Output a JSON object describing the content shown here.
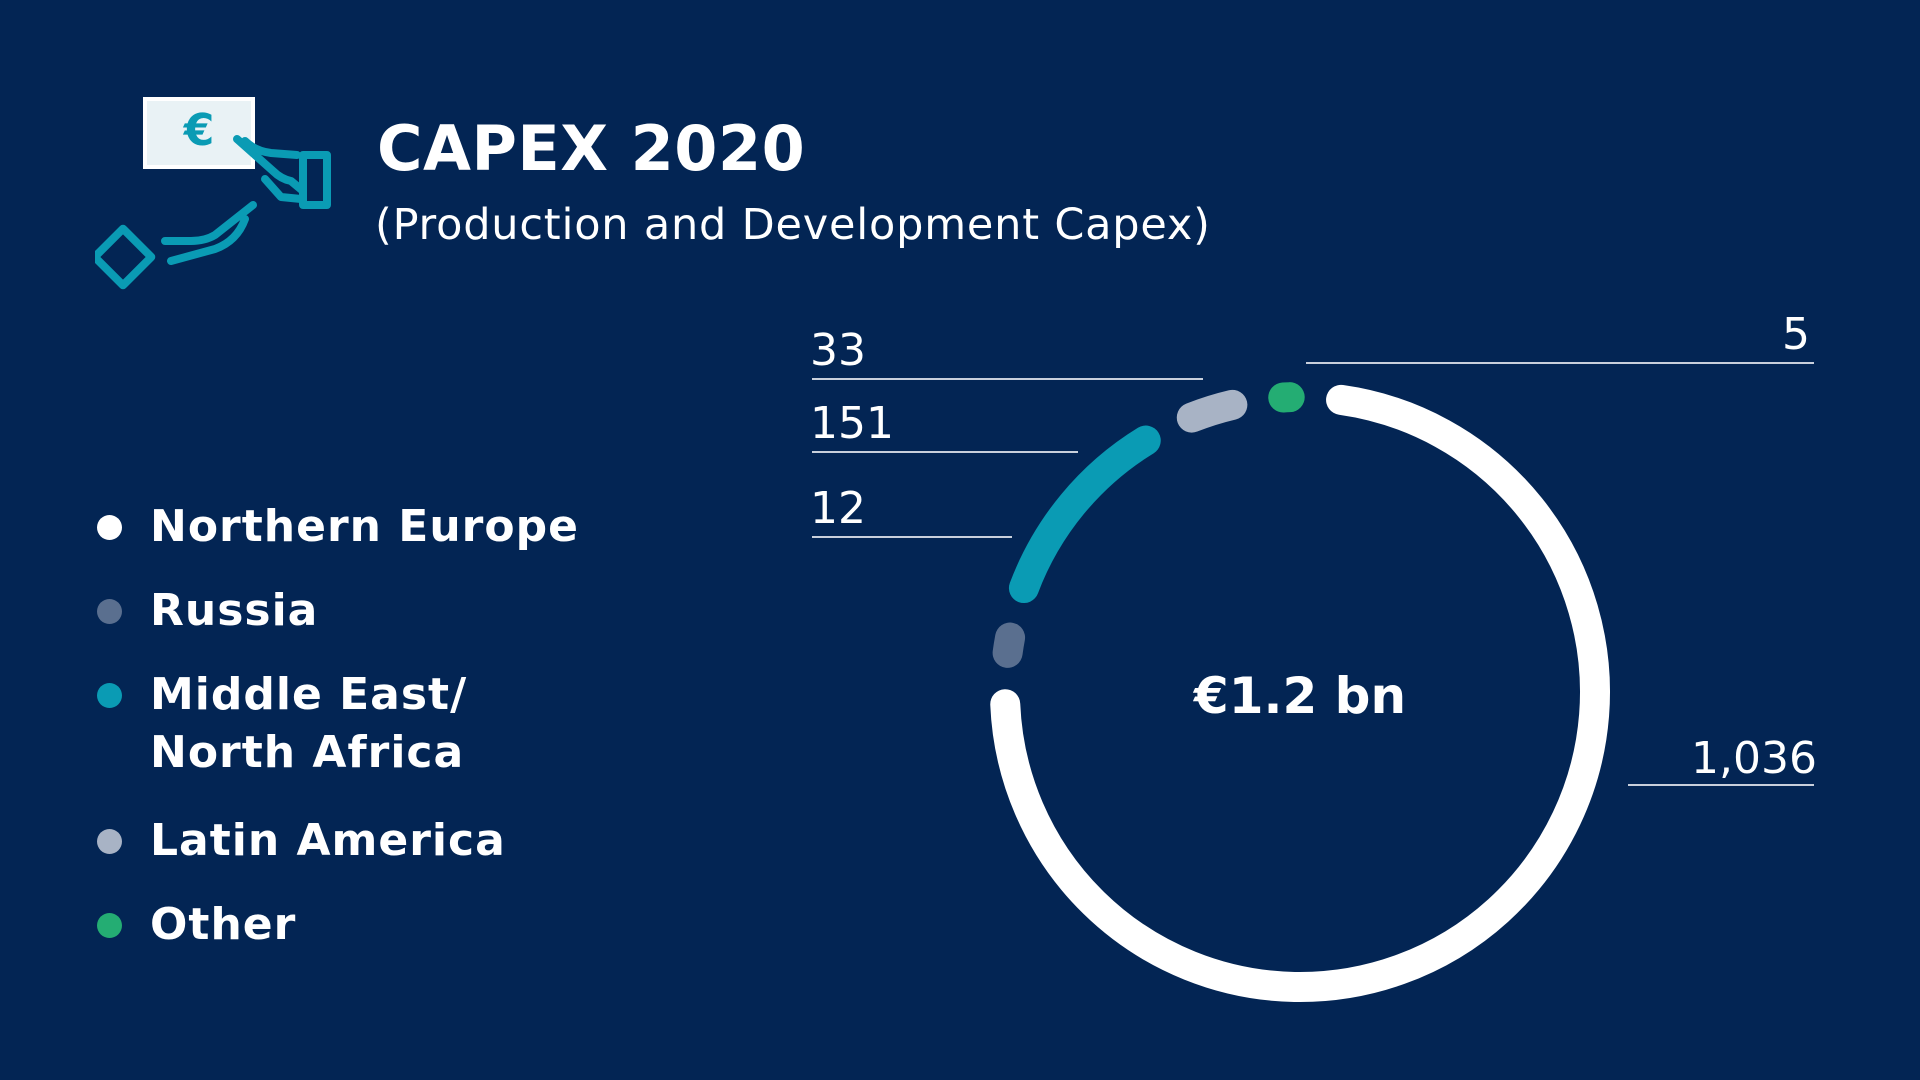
{
  "header": {
    "title": "CAPEX 2020",
    "subtitle": "(Production and Development Capex)"
  },
  "icon": {
    "name": "hand-giving-euro-note-icon",
    "glyph": "€",
    "color": "#0a9bb4"
  },
  "legend": [
    {
      "label": "Northern Europe",
      "color": "#ffffff"
    },
    {
      "label": "Russia",
      "color": "#5a6f8f"
    },
    {
      "label": "Middle East/",
      "label2": "North Africa",
      "color": "#0a9bb4"
    },
    {
      "label": "Latin America",
      "color": "#a8b3c5"
    },
    {
      "label": "Other",
      "color": "#24ad73"
    }
  ],
  "chart_data": {
    "type": "pie",
    "title": "CAPEX 2020",
    "subtitle": "(Production and Development Capex)",
    "center_label": "€1.2 bn",
    "slices": [
      {
        "name": "Northern Europe",
        "value": 1036,
        "label": "1,036",
        "color": "#ffffff"
      },
      {
        "name": "Russia",
        "value": 12,
        "label": "12",
        "color": "#5a6f8f"
      },
      {
        "name": "Middle East/North Africa",
        "value": 151,
        "label": "151",
        "color": "#0a9bb4"
      },
      {
        "name": "Latin America",
        "value": 33,
        "label": "33",
        "color": "#a8b3c5"
      },
      {
        "name": "Other",
        "value": 5,
        "label": "5",
        "color": "#24ad73"
      }
    ]
  }
}
